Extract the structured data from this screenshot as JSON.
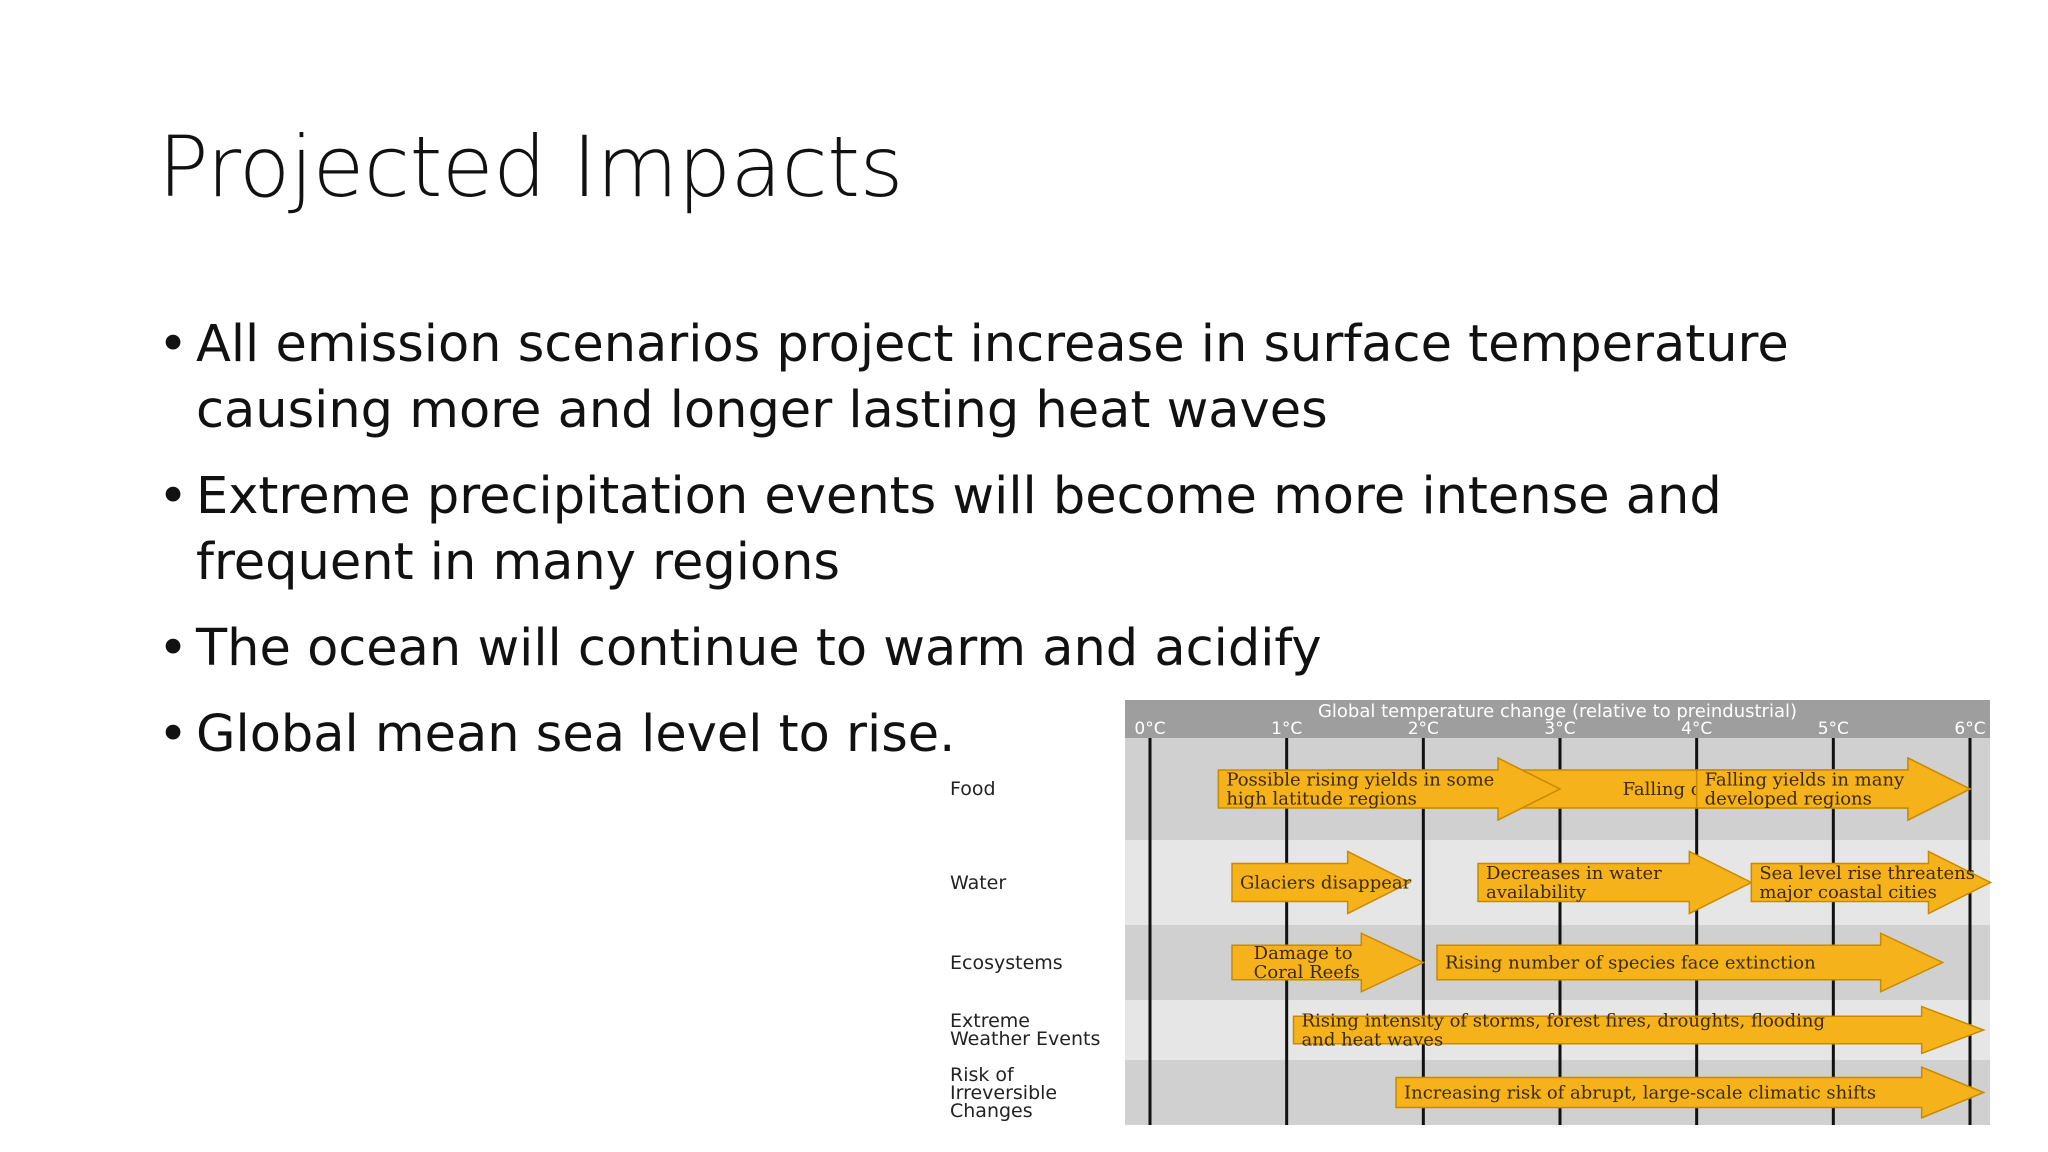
{
  "slide": {
    "title": "Projected Impacts",
    "bullets": [
      "All emission scenarios project increase in surface temperature causing more and longer lasting heat waves",
      "Extreme precipitation events will become more intense and frequent in many regions",
      "The ocean will continue to warm and acidify",
      "Global mean sea level to rise."
    ]
  },
  "figure": {
    "header": "Global temperature change (relative to preindustrial)",
    "ticks": [
      "0°C",
      "1°C",
      "2°C",
      "3°C",
      "4°C",
      "5°C",
      "6°C"
    ],
    "rows": [
      "Food",
      "Water",
      "Ecosystems",
      "Extreme Weather Events",
      "Risk of Irreversible Changes"
    ],
    "row_label_lines": [
      [
        "Food"
      ],
      [
        "Water"
      ],
      [
        "Ecosystems"
      ],
      [
        "Extreme",
        "Weather Events"
      ],
      [
        "Risk of",
        "Irreversible",
        "Changes"
      ]
    ],
    "impacts": [
      {
        "row": 0,
        "from": 1.3,
        "to": 6.0,
        "lines": [
          "Falling crop yields"
        ],
        "text_at": 3.4
      },
      {
        "row": 0,
        "from": 0.5,
        "to": 3.0,
        "lines": [
          "Possible rising yields in some",
          "high latitude regions"
        ],
        "text_at": 0.5
      },
      {
        "row": 0,
        "from": 4.0,
        "to": 6.0,
        "lines": [
          "Falling yields in many",
          "developed regions"
        ],
        "text_at": 4.0
      },
      {
        "row": 1,
        "from": 0.6,
        "to": 1.9,
        "lines": [
          "Glaciers disappear"
        ],
        "text_at": 0.6
      },
      {
        "row": 1,
        "from": 2.4,
        "to": 4.4,
        "lines": [
          "Decreases in water",
          "availability"
        ],
        "text_at": 2.4
      },
      {
        "row": 1,
        "from": 4.4,
        "to": 6.15,
        "lines": [
          "Sea level rise threatens",
          "major coastal cities"
        ],
        "text_at": 4.4
      },
      {
        "row": 2,
        "from": 0.6,
        "to": 2.0,
        "lines": [
          "Damage to",
          "Coral Reefs"
        ],
        "text_at": 0.7
      },
      {
        "row": 2,
        "from": 2.1,
        "to": 5.8,
        "lines": [
          "Rising number of species face extinction"
        ],
        "text_at": 2.1
      },
      {
        "row": 3,
        "from": 1.05,
        "to": 6.1,
        "lines": [
          "Rising intensity of storms, forest fires, droughts, flooding",
          "and heat waves"
        ],
        "text_at": 1.05
      },
      {
        "row": 4,
        "from": 1.8,
        "to": 6.1,
        "lines": [
          "Increasing risk of abrupt, large-scale climatic shifts"
        ],
        "text_at": 1.8
      }
    ],
    "colors": {
      "arrow": "#f6b21a",
      "arrow_stroke": "#c88a00",
      "band_dark": "#d0d0d0",
      "band_light": "#e6e6e6",
      "header": "#9e9e9e"
    }
  }
}
